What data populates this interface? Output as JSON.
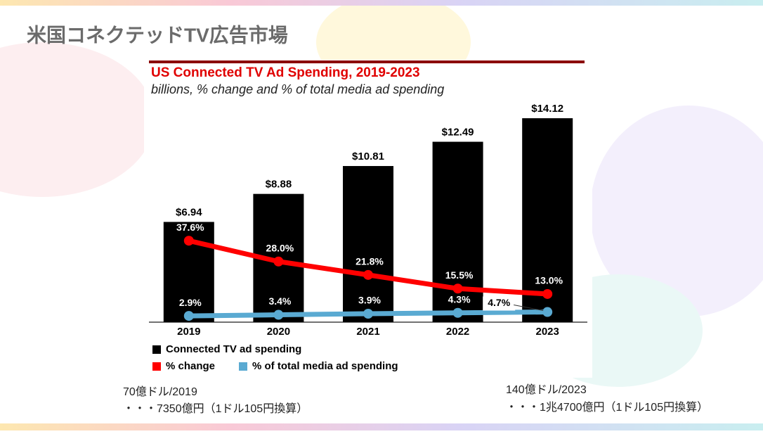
{
  "slide": {
    "title": "米国コネクテッドTV広告市場",
    "notes": [
      [
        "70億ドル/2019",
        "・・・7350億円（1ドル105円換算）"
      ],
      [
        "140億ドル/2023",
        "・・・1兆4700億円（1ドル105円換算）"
      ]
    ]
  },
  "chart_data": {
    "type": "bar",
    "title": "US Connected TV Ad Spending, 2019-2023",
    "subtitle": "billions, % change and % of total media ad spending",
    "categories": [
      "2019",
      "2020",
      "2021",
      "2022",
      "2023"
    ],
    "ylim": [
      0,
      15
    ],
    "y2lim": [
      0,
      100
    ],
    "series": [
      {
        "name": "Connected TV ad spending",
        "color": "#000000",
        "type": "bar",
        "values": [
          6.94,
          8.88,
          10.81,
          12.49,
          14.12
        ],
        "value_labels": [
          "$6.94",
          "$8.88",
          "$10.81",
          "$12.49",
          "$14.12"
        ]
      },
      {
        "name": "% change",
        "color": "#ff0000",
        "type": "line",
        "axis": "y2",
        "values": [
          37.6,
          28.0,
          21.8,
          15.5,
          13.0
        ],
        "value_labels": [
          "37.6%",
          "28.0%",
          "21.8%",
          "15.5%",
          "13.0%"
        ]
      },
      {
        "name": "% of total media ad spending",
        "color": "#5aaad2",
        "type": "line",
        "axis": "y2",
        "values": [
          2.9,
          3.4,
          3.9,
          4.3,
          4.7
        ],
        "value_labels": [
          "2.9%",
          "3.4%",
          "3.9%",
          "4.3%",
          "4.7%"
        ]
      }
    ]
  }
}
